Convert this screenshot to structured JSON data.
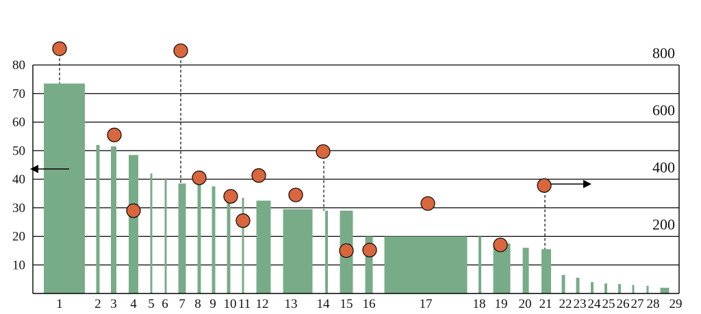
{
  "chart_data": {
    "type": "bar",
    "title": "",
    "xlabel": "",
    "ylabel": "",
    "y2label": "",
    "ylim": [
      0,
      80
    ],
    "y2lim": [
      0,
      800
    ],
    "yticks": [
      10,
      20,
      30,
      40,
      50,
      60,
      70,
      80
    ],
    "y2ticks": [
      200,
      400,
      600,
      800
    ],
    "grid": true,
    "bar_color": "#78AC88",
    "point_color": "#D9663C",
    "bar_series": {
      "axis": "left",
      "categories": [
        "1",
        "2",
        "3",
        "4",
        "5",
        "6",
        "7",
        "8",
        "9",
        "10",
        "11",
        "12",
        "13",
        "14",
        "15",
        "16",
        "17",
        "18",
        "19",
        "20",
        "21",
        "22",
        "23",
        "24",
        "25",
        "26",
        "27",
        "28",
        "29"
      ],
      "values": [
        73.5,
        52,
        51.5,
        48.5,
        42,
        40,
        38.5,
        38.5,
        37.5,
        35,
        33.5,
        32.5,
        29.5,
        29,
        29,
        20,
        20,
        20,
        17.5,
        16,
        15.5,
        6.5,
        5.5,
        4,
        3.5,
        3.3,
        3,
        2.7,
        2
      ]
    },
    "point_series": {
      "axis": "right",
      "points": [
        {
          "category": "1",
          "value": 857
        },
        {
          "category": "3",
          "value": 555
        },
        {
          "category": "4",
          "value": 290
        },
        {
          "category": "7",
          "value": 850
        },
        {
          "category": "8",
          "value": 405
        },
        {
          "category": "10",
          "value": 340
        },
        {
          "category": "11",
          "value": 255
        },
        {
          "category": "12",
          "value": 413
        },
        {
          "category": "13",
          "value": 345
        },
        {
          "category": "14",
          "value": 497
        },
        {
          "category": "15",
          "value": 150
        },
        {
          "category": "16",
          "value": 152
        },
        {
          "category": "17",
          "value": 315
        },
        {
          "category": "19",
          "value": 170
        },
        {
          "category": "21",
          "value": 378
        }
      ]
    },
    "axis_indicators": {
      "left": "arrow points to left axis (bars)",
      "right": "arrow points to right axis (points)"
    }
  }
}
